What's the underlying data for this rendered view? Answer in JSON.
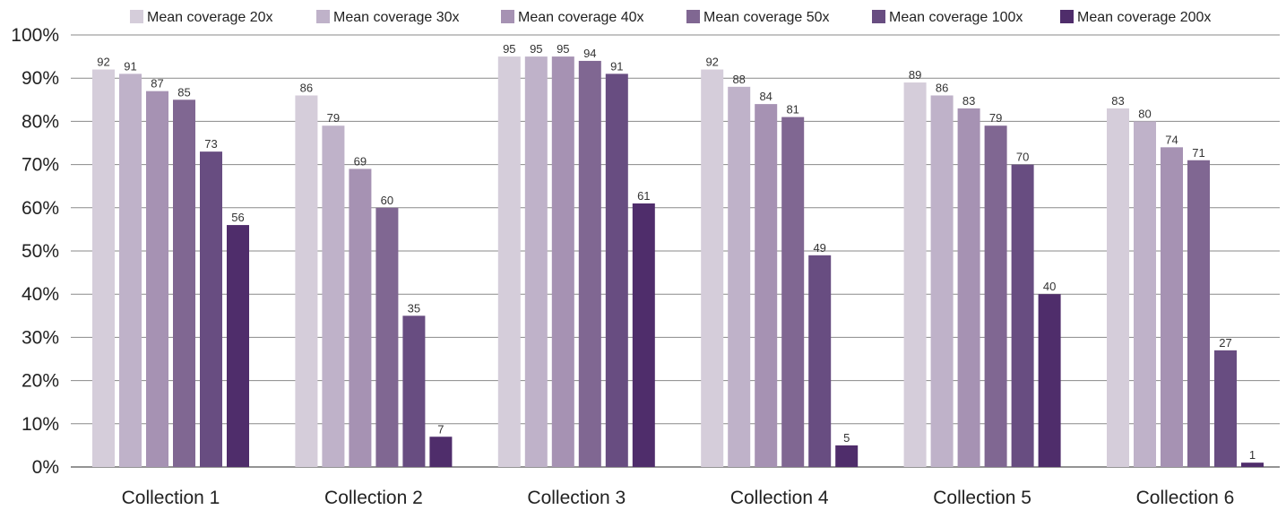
{
  "chart_data": {
    "type": "bar",
    "title": "",
    "xlabel": "",
    "ylabel": "",
    "ylim": [
      0,
      100
    ],
    "yticks": [
      "0%",
      "10%",
      "20%",
      "30%",
      "40%",
      "50%",
      "60%",
      "70%",
      "80%",
      "90%",
      "100%"
    ],
    "grid": true,
    "legend_position": "top",
    "categories": [
      "Collection 1",
      "Collection 2",
      "Collection 3",
      "Collection 4",
      "Collection 5",
      "Collection 6"
    ],
    "series": [
      {
        "name": "Mean coverage 20x",
        "color": "#d5cdda",
        "values": [
          92,
          86,
          95,
          92,
          89,
          83
        ],
        "labels": [
          "92",
          "86",
          "95",
          "92",
          "89",
          "83"
        ]
      },
      {
        "name": "Mean coverage 30x",
        "color": "#bfb2c9",
        "values": [
          91,
          79,
          95,
          88,
          86,
          80
        ],
        "labels": [
          "91",
          "79",
          "95",
          "88",
          "86",
          "80"
        ]
      },
      {
        "name": "Mean coverage 40x",
        "color": "#a692b3",
        "values": [
          87,
          69,
          95,
          84,
          83,
          74
        ],
        "labels": [
          "87",
          "69",
          "95",
          "84",
          "83",
          "74"
        ]
      },
      {
        "name": "Mean coverage 50x",
        "color": "#806792",
        "values": [
          85,
          60,
          94,
          81,
          79,
          71
        ],
        "labels": [
          "85",
          "60",
          "94",
          "81",
          "79",
          "71"
        ]
      },
      {
        "name": "Mean coverage 100x",
        "color": "#684d81",
        "values": [
          73,
          35,
          91,
          49,
          70,
          27
        ],
        "labels": [
          "73",
          "35",
          "91",
          "49",
          "70",
          "27"
        ]
      },
      {
        "name": "Mean coverage 200x",
        "color": "#4f2d6b",
        "values": [
          56,
          7,
          61,
          5,
          40,
          1
        ],
        "labels": [
          "56",
          "7",
          "61",
          "5",
          "40",
          "1"
        ]
      }
    ]
  }
}
